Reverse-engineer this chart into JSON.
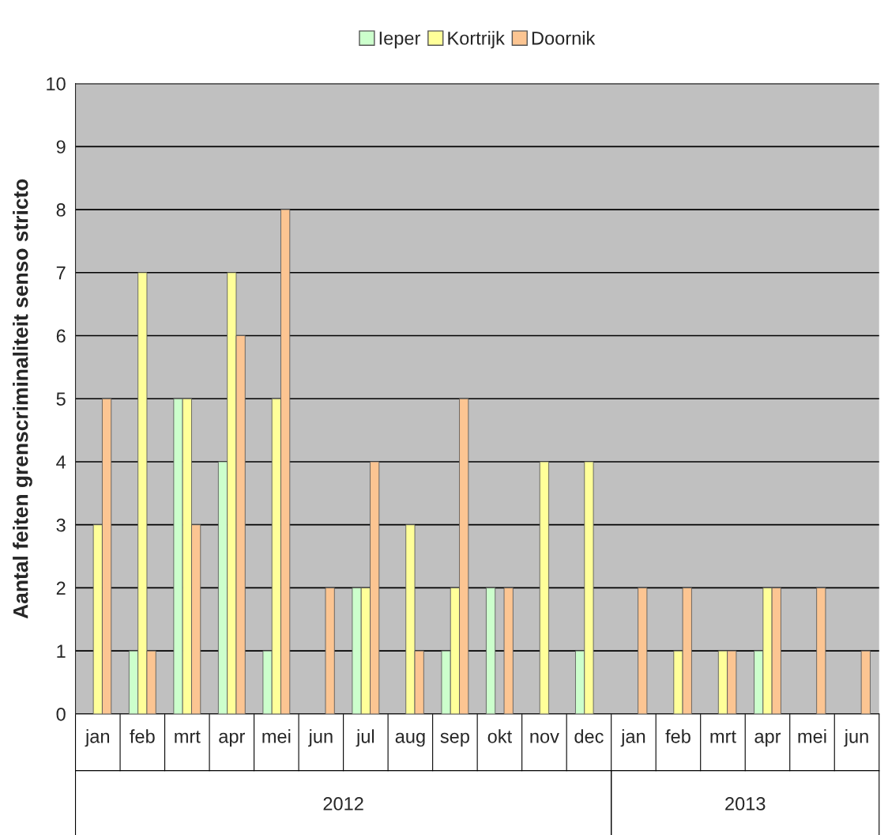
{
  "chart_data": {
    "type": "bar",
    "ylabel": "Aantal feiten grenscriminaliteit senso stricto",
    "categories": [
      "jan",
      "feb",
      "mrt",
      "apr",
      "mei",
      "jun",
      "jul",
      "aug",
      "sep",
      "okt",
      "nov",
      "dec",
      "jan",
      "feb",
      "mrt",
      "apr",
      "mei",
      "jun"
    ],
    "annotations": [
      "2012",
      "2013"
    ],
    "series": [
      {
        "name": "Ieper",
        "color": "#ccffcc",
        "values": [
          0,
          1,
          5,
          4,
          1,
          0,
          2,
          0,
          1,
          2,
          0,
          1,
          0,
          0,
          0,
          1,
          0,
          0
        ]
      },
      {
        "name": "Kortrijk",
        "color": "#ffff99",
        "values": [
          3,
          7,
          5,
          7,
          5,
          0,
          2,
          3,
          2,
          0,
          4,
          4,
          0,
          1,
          1,
          2,
          0,
          0
        ]
      },
      {
        "name": "Doornik",
        "color": "#fcc592",
        "values": [
          5,
          1,
          3,
          6,
          8,
          2,
          4,
          1,
          5,
          2,
          0,
          0,
          2,
          2,
          1,
          2,
          2,
          1
        ]
      }
    ],
    "ylim": [
      0,
      10
    ],
    "yticks": [
      0,
      1,
      2,
      3,
      4,
      5,
      6,
      7,
      8,
      9,
      10
    ],
    "grid": "y",
    "legend": "top"
  }
}
